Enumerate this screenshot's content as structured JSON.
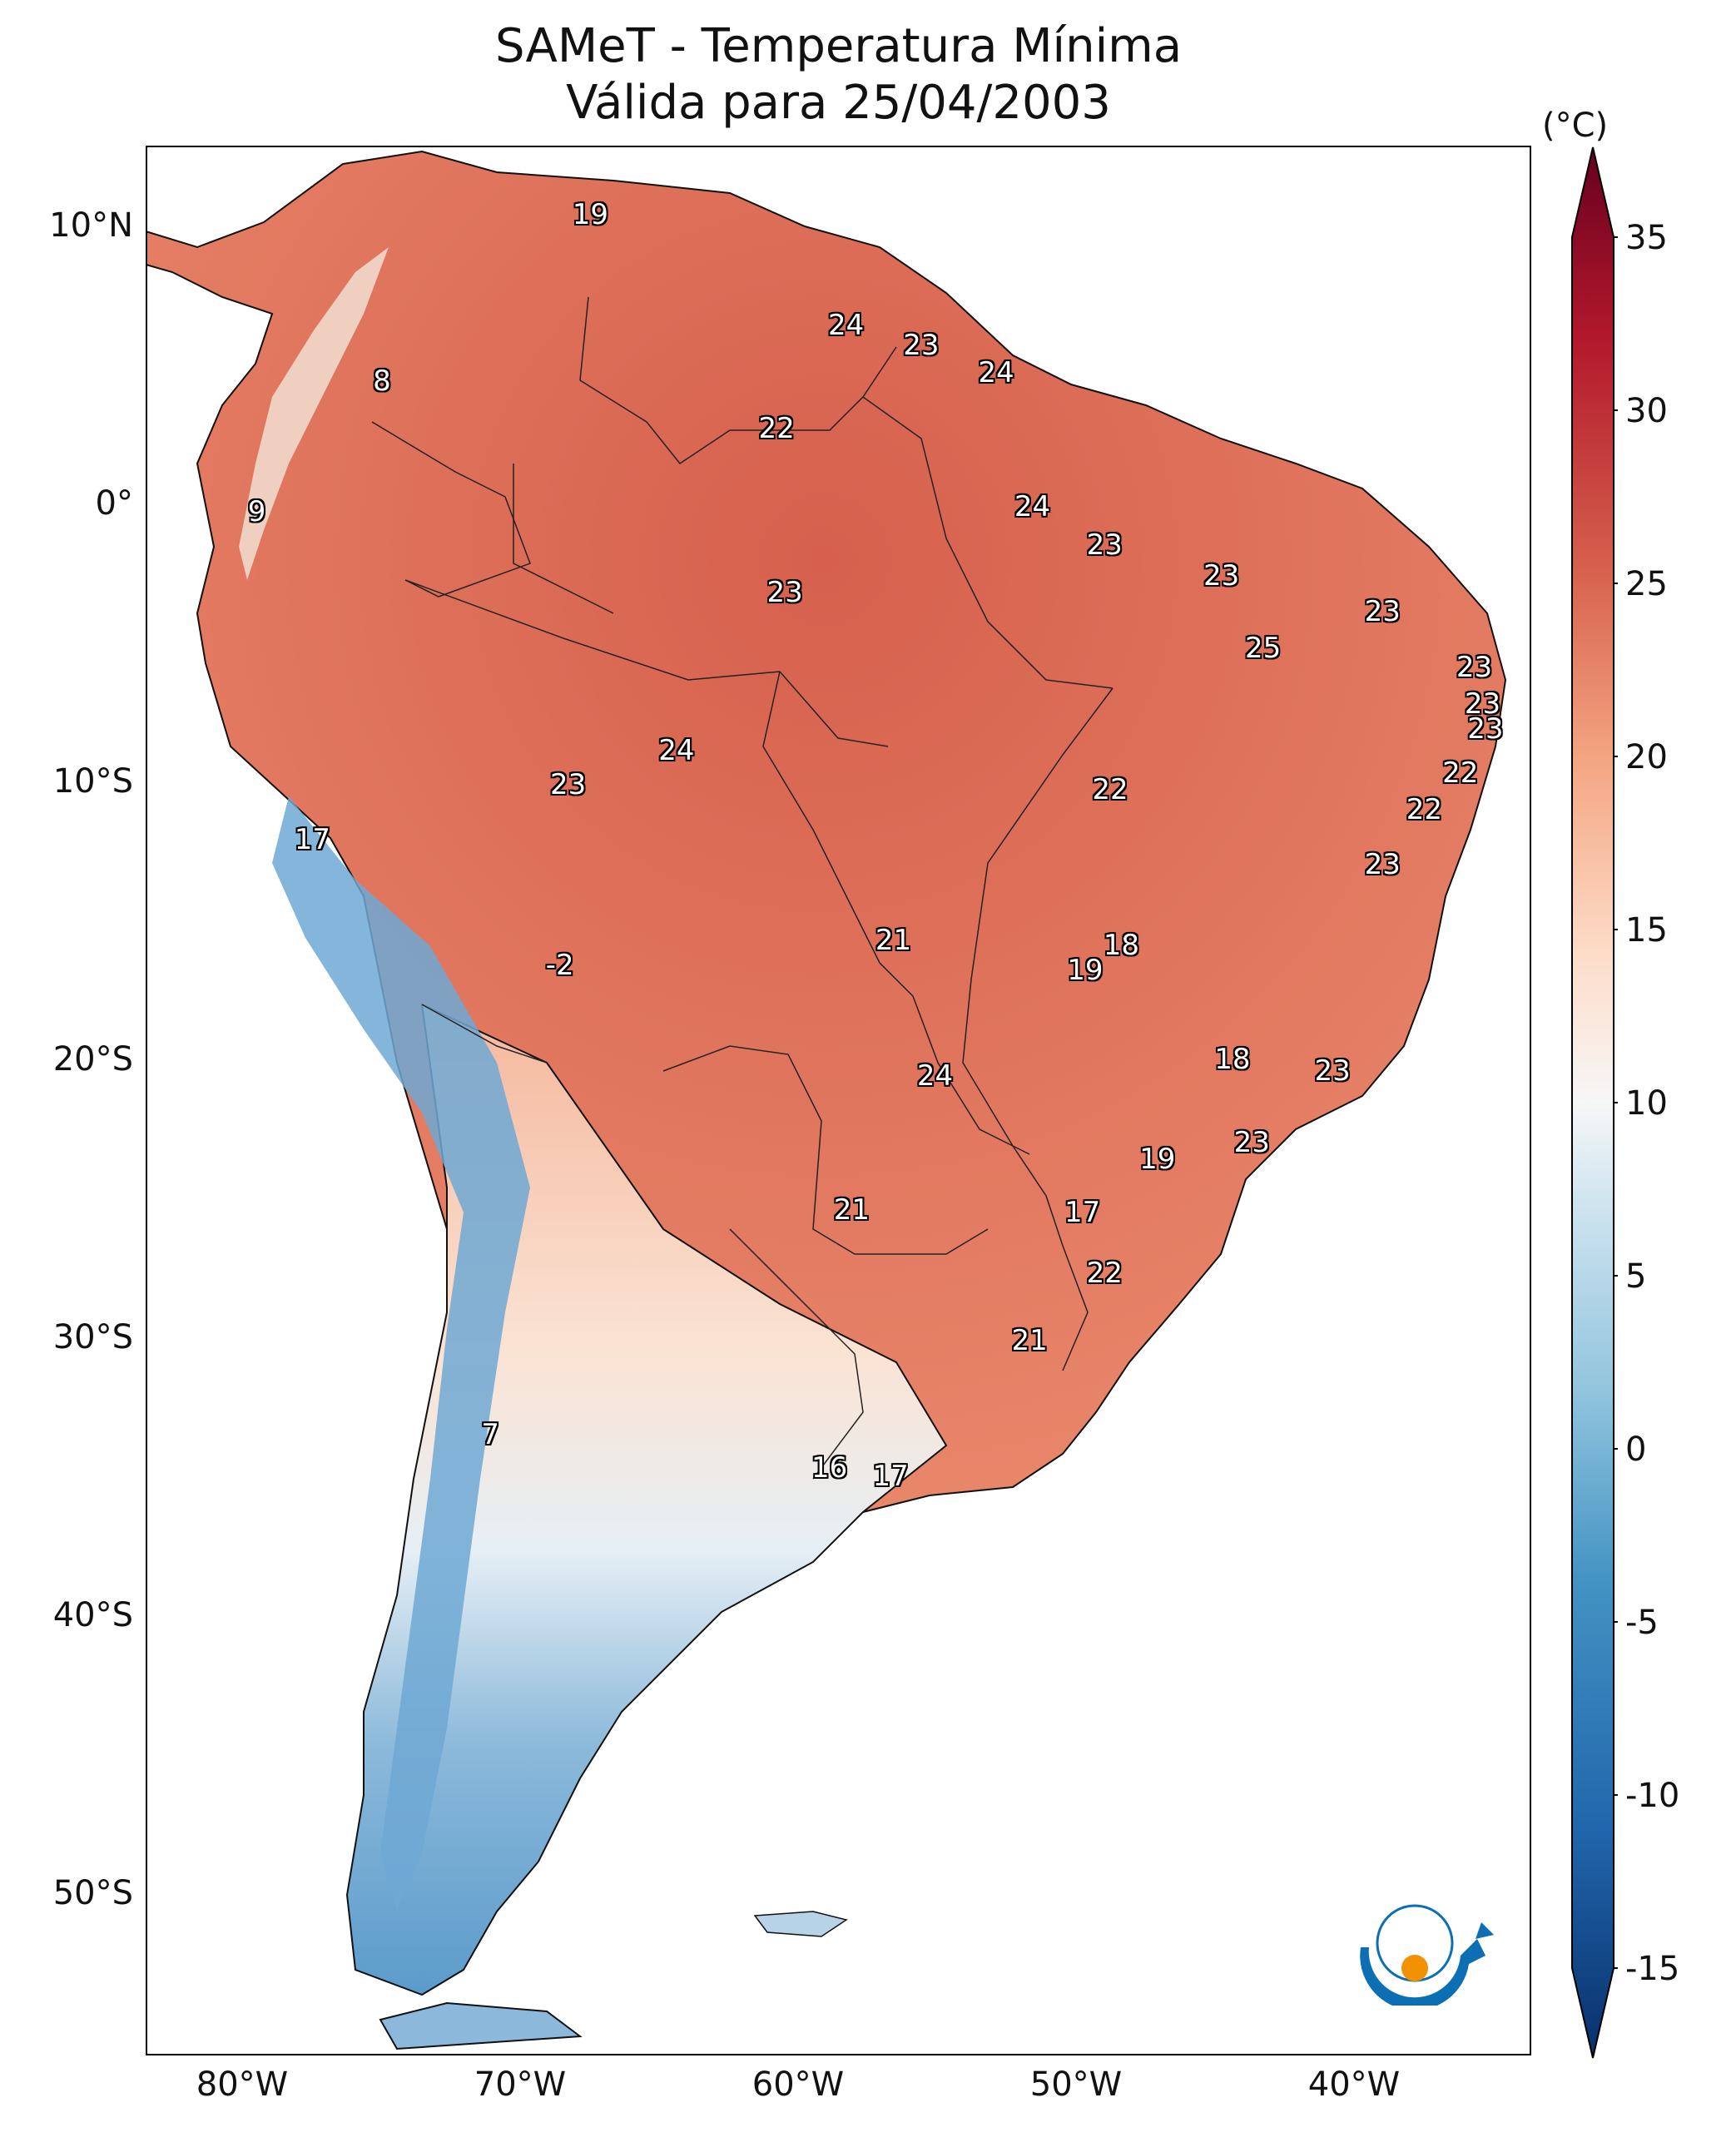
{
  "title_line1": "SAMeT - Temperatura Mínima",
  "title_line2": "Válida para 25/04/2003",
  "lat_labels": [
    "10°N",
    "0°",
    "10°S",
    "20°S",
    "30°S",
    "40°S",
    "50°S"
  ],
  "lon_labels": [
    "80°W",
    "70°W",
    "60°W",
    "50°W",
    "40°W"
  ],
  "colorbar": {
    "unit": "(°C)",
    "ticks": [
      "35",
      "30",
      "25",
      "20",
      "15",
      "10",
      "5",
      "0",
      "-5",
      "-10",
      "-15"
    ],
    "colors": [
      "#08306b",
      "#2166ac",
      "#4393c3",
      "#92c5de",
      "#d1e5f0",
      "#f7f7f7",
      "#fddbc7",
      "#f4a582",
      "#d6604d",
      "#b2182b",
      "#67001f"
    ]
  },
  "station_values": [
    {
      "lon": -67,
      "lat": 10.5,
      "value": "19"
    },
    {
      "lon": -74.5,
      "lat": 4.5,
      "value": "8"
    },
    {
      "lon": -79,
      "lat": -0.2,
      "value": "9"
    },
    {
      "lon": -57.8,
      "lat": 6.5,
      "value": "24"
    },
    {
      "lon": -55.1,
      "lat": 5.8,
      "value": "23"
    },
    {
      "lon": -52.4,
      "lat": 4.8,
      "value": "24"
    },
    {
      "lon": -60.3,
      "lat": 2.8,
      "value": "22"
    },
    {
      "lon": -51.1,
      "lat": 0.0,
      "value": "24"
    },
    {
      "lon": -48.5,
      "lat": -1.4,
      "value": "23"
    },
    {
      "lon": -60.0,
      "lat": -3.1,
      "value": "23"
    },
    {
      "lon": -44.3,
      "lat": -2.5,
      "value": "23"
    },
    {
      "lon": -42.8,
      "lat": -5.1,
      "value": "25"
    },
    {
      "lon": -38.5,
      "lat": -3.8,
      "value": "23"
    },
    {
      "lon": -35.2,
      "lat": -5.8,
      "value": "23"
    },
    {
      "lon": -34.9,
      "lat": -7.1,
      "value": "23"
    },
    {
      "lon": -34.8,
      "lat": -8.0,
      "value": "23"
    },
    {
      "lon": -35.7,
      "lat": -9.6,
      "value": "22"
    },
    {
      "lon": -37.0,
      "lat": -10.9,
      "value": "22"
    },
    {
      "lon": -38.5,
      "lat": -12.9,
      "value": "23"
    },
    {
      "lon": -63.9,
      "lat": -8.8,
      "value": "24"
    },
    {
      "lon": -67.8,
      "lat": -10.0,
      "value": "23"
    },
    {
      "lon": -48.3,
      "lat": -10.2,
      "value": "22"
    },
    {
      "lon": -77.0,
      "lat": -12.0,
      "value": "17"
    },
    {
      "lon": -56.1,
      "lat": -15.6,
      "value": "21"
    },
    {
      "lon": -47.9,
      "lat": -15.8,
      "value": "18"
    },
    {
      "lon": -49.2,
      "lat": -16.7,
      "value": "19"
    },
    {
      "lon": -68.1,
      "lat": -16.5,
      "value": "-2"
    },
    {
      "lon": -43.9,
      "lat": -19.9,
      "value": "18"
    },
    {
      "lon": -54.6,
      "lat": -20.5,
      "value": "24"
    },
    {
      "lon": -40.3,
      "lat": -20.3,
      "value": "23"
    },
    {
      "lon": -43.2,
      "lat": -22.9,
      "value": "23"
    },
    {
      "lon": -46.6,
      "lat": -23.5,
      "value": "19"
    },
    {
      "lon": -49.3,
      "lat": -25.4,
      "value": "17"
    },
    {
      "lon": -57.6,
      "lat": -25.3,
      "value": "21"
    },
    {
      "lon": -48.5,
      "lat": -27.6,
      "value": "22"
    },
    {
      "lon": -51.2,
      "lat": -30.0,
      "value": "21"
    },
    {
      "lon": -70.6,
      "lat": -33.4,
      "value": "7"
    },
    {
      "lon": -58.4,
      "lat": -34.6,
      "value": "16"
    },
    {
      "lon": -56.2,
      "lat": -34.9,
      "value": "17"
    }
  ]
}
